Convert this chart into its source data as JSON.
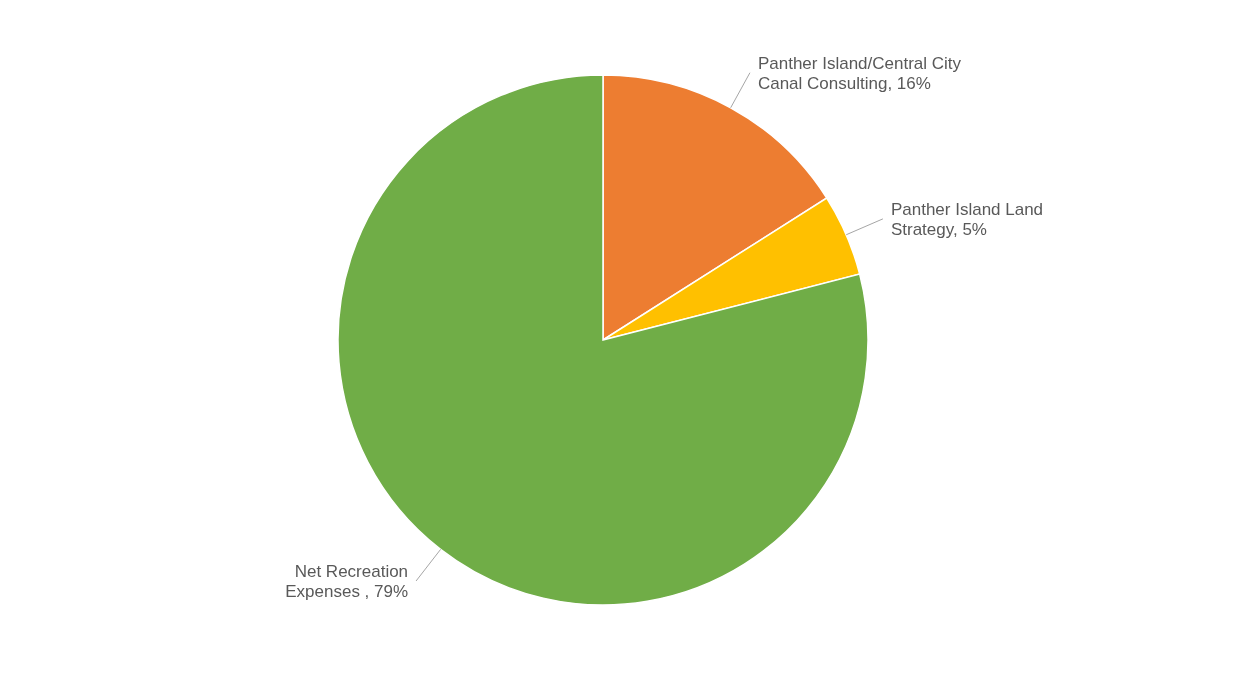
{
  "chart_data": {
    "type": "pie",
    "categories": [
      "Panther Island/Central City Canal Consulting",
      "Panther Island Land Strategy",
      "Net Recreation Expenses "
    ],
    "values": [
      16,
      5,
      79
    ],
    "value_labels": [
      "16%",
      "5%",
      "79%"
    ],
    "colors": [
      "#ed7d31",
      "#ffc000",
      "#70ad47"
    ]
  }
}
